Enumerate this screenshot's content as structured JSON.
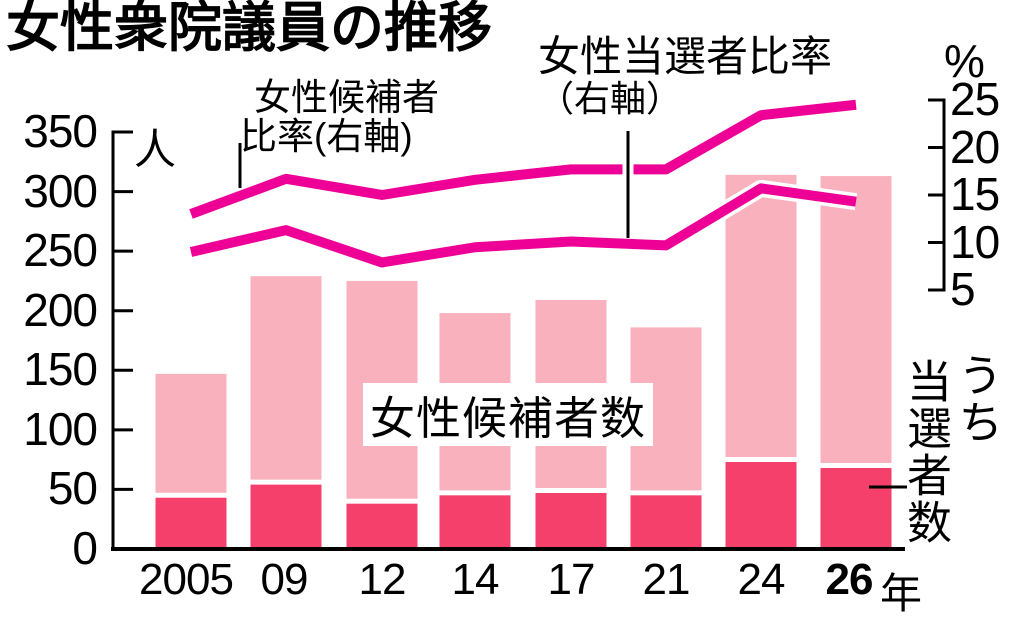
{
  "title": "女性衆院議員の推移",
  "left_axis": {
    "unit": "人",
    "ticks": [
      350,
      300,
      250,
      200,
      150,
      100,
      50,
      0
    ],
    "range": [
      0,
      350
    ]
  },
  "right_axis": {
    "unit": "%",
    "ticks": [
      25,
      20,
      15,
      10,
      5
    ],
    "range": [
      5,
      25
    ]
  },
  "annotations": {
    "candidate_ratio_label_line1": "女性候補者",
    "candidate_ratio_label_line2": "比率(右軸)",
    "winner_ratio_label_line1": "女性当選者比率",
    "winner_ratio_label_line2": "（右軸）",
    "bar_label": "女性候補者数",
    "winner_bar_label_col_right": "うち",
    "winner_bar_label_col_left": "当選者数",
    "year_suffix": "年"
  },
  "colors": {
    "bar_light": "#F8B1BD",
    "bar_dark": "#F4406B",
    "line": "#EE0097",
    "axis": "#000000",
    "background": "#FFFFFF"
  },
  "chart_data": {
    "type": "bar",
    "subtype": "stacked bars with two overlay lines",
    "categories": [
      "2005",
      "09",
      "12",
      "14",
      "17",
      "21",
      "24",
      "26"
    ],
    "emphasized_category": "26",
    "series": [
      {
        "name": "女性候補者数",
        "type": "bar",
        "axis": "left",
        "unit": "人",
        "values": [
          147,
          229,
          225,
          198,
          209,
          186,
          314,
          313
        ]
      },
      {
        "name": "うち当選者数",
        "type": "bar",
        "axis": "left",
        "unit": "人",
        "values": [
          43,
          54,
          38,
          45,
          47,
          45,
          73,
          68
        ]
      },
      {
        "name": "女性候補者比率(右軸)",
        "type": "line",
        "axis": "right",
        "unit": "%",
        "values": [
          13.0,
          16.7,
          15.0,
          16.6,
          17.7,
          17.7,
          23.4,
          24.5
        ]
      },
      {
        "name": "女性当選者比率(右軸)",
        "type": "line",
        "axis": "right",
        "unit": "%",
        "values": [
          9.0,
          11.3,
          7.9,
          9.5,
          10.1,
          9.7,
          15.7,
          14.3
        ]
      }
    ],
    "left_ylim": [
      0,
      350
    ],
    "right_ylim": [
      5,
      25
    ],
    "grid": false,
    "legend_position": "inline annotations"
  }
}
